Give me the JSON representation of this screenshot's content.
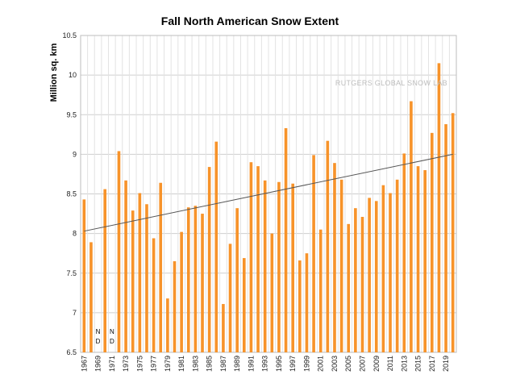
{
  "chart_data": {
    "type": "bar",
    "title": "Fall North American Snow Extent",
    "ylabel": "Million sq. km",
    "xlabel": "",
    "ylim": [
      6.5,
      10.5
    ],
    "yticks": [
      "6.5",
      "7",
      "7.5",
      "8",
      "8.5",
      "9",
      "9.5",
      "10",
      "10.5"
    ],
    "grid": true,
    "bar_color": "#f7932a",
    "trend_color": "#555555",
    "watermark": "RUTGERS GLOBAL SNOW LAB",
    "missing_label": [
      "N",
      "D"
    ],
    "x": [
      "1967",
      "1968",
      "1969",
      "1970",
      "1971",
      "1972",
      "1973",
      "1974",
      "1975",
      "1976",
      "1977",
      "1978",
      "1979",
      "1980",
      "1981",
      "1982",
      "1983",
      "1984",
      "1985",
      "1986",
      "1987",
      "1988",
      "1989",
      "1990",
      "1991",
      "1992",
      "1993",
      "1994",
      "1995",
      "1996",
      "1997",
      "1998",
      "1999",
      "2000",
      "2001",
      "2002",
      "2003",
      "2004",
      "2005",
      "2006",
      "2007",
      "2008",
      "2009",
      "2010",
      "2011",
      "2012",
      "2013",
      "2014",
      "2015",
      "2016",
      "2017",
      "2018",
      "2019",
      "2020"
    ],
    "x_tick_labels": [
      "1967",
      "1969",
      "1971",
      "1973",
      "1975",
      "1977",
      "1979",
      "1981",
      "1983",
      "1985",
      "1987",
      "1989",
      "1991",
      "1993",
      "1995",
      "1997",
      "1999",
      "2001",
      "2003",
      "2005",
      "2007",
      "2009",
      "2011",
      "2013",
      "2015",
      "2017",
      "2019"
    ],
    "values": [
      8.43,
      7.89,
      null,
      8.56,
      null,
      9.04,
      8.67,
      8.29,
      8.51,
      8.37,
      7.94,
      8.64,
      7.18,
      7.65,
      8.02,
      8.33,
      8.35,
      8.25,
      8.84,
      9.16,
      7.11,
      7.87,
      8.32,
      7.69,
      8.9,
      8.85,
      8.67,
      8.0,
      8.65,
      9.33,
      8.63,
      7.66,
      7.75,
      8.99,
      8.05,
      9.17,
      8.89,
      8.68,
      8.12,
      8.32,
      8.21,
      8.45,
      8.41,
      8.61,
      8.51,
      8.68,
      9.01,
      9.67,
      8.85,
      8.8,
      9.27,
      10.15,
      9.38,
      9.52
    ],
    "trend": {
      "start": 8.03,
      "end": 9.0
    }
  }
}
